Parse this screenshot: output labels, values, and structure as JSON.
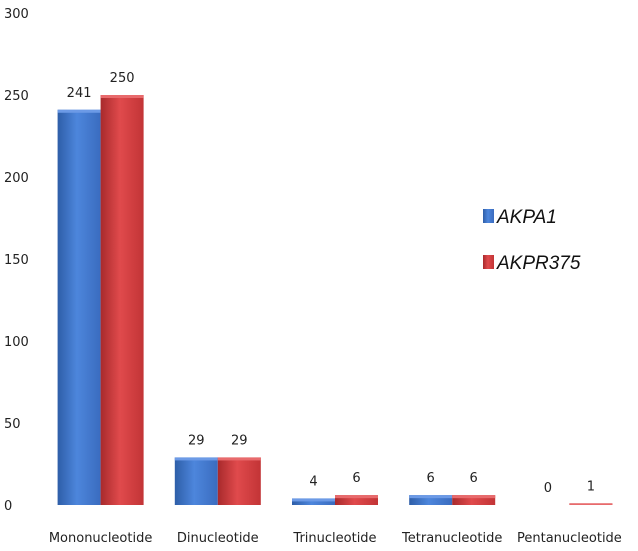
{
  "chart_data": {
    "type": "bar",
    "categories": [
      "Mononucleotide",
      "Dinucleotide",
      "Trinucleotide",
      "Tetranucleotide",
      "Pentanucleotide"
    ],
    "series": [
      {
        "name": "AKPA1",
        "values": [
          241,
          29,
          4,
          6,
          0
        ],
        "color": "#3f73c8"
      },
      {
        "name": "AKPR375",
        "values": [
          250,
          29,
          6,
          6,
          1
        ],
        "color": "#cc3a3c"
      }
    ],
    "yticks": [
      "0",
      "50",
      "100",
      "150",
      "200",
      "250",
      "300"
    ],
    "ylim": [
      0,
      300
    ],
    "grid": false,
    "legend_position": "right",
    "title": "",
    "xlabel": "",
    "ylabel": ""
  }
}
